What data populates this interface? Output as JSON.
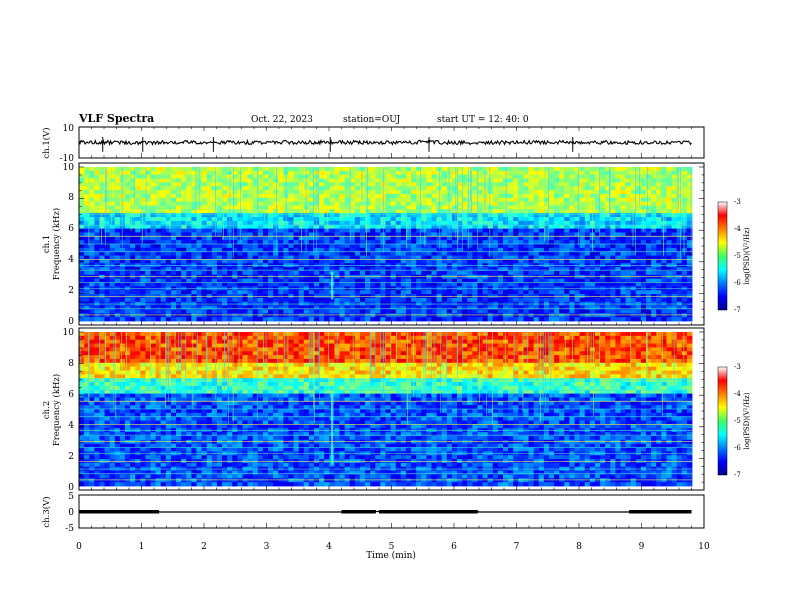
{
  "header": {
    "title": "VLF Spectra",
    "date": "Oct. 22, 2023",
    "station": "station=OUJ",
    "start": "start  UT =   12: 40: 0"
  },
  "chart_data": [
    {
      "type": "line",
      "name": "ch1-waveform",
      "ylabel": "ch.1(V)",
      "ylim": [
        -10,
        10
      ],
      "yticks": [
        "10",
        "-10"
      ],
      "xlim": [
        0,
        10
      ],
      "x": [
        0,
        0.5,
        1,
        1.5,
        2,
        2.5,
        3,
        3.5,
        4,
        4.5,
        5,
        5.5,
        6,
        6.5,
        7,
        7.5,
        8,
        8.5,
        9,
        9.5,
        9.8
      ],
      "y": [
        0.2,
        0,
        -0.3,
        0.2,
        0,
        0.1,
        -0.2,
        0.2,
        0,
        0.1,
        -0.1,
        0.2,
        0,
        -0.2,
        0.1,
        0,
        0.2,
        0,
        -0.1,
        0.1,
        0
      ]
    },
    {
      "type": "heatmap",
      "name": "ch1-spectrogram",
      "ylabel": "ch.1",
      "ylabel2": "Frequency (kHz)",
      "ylim": [
        0,
        10
      ],
      "yticks": [
        "0",
        "2",
        "4",
        "6",
        "8",
        "10"
      ],
      "xlim": [
        0,
        10
      ],
      "colorbar": {
        "label": "log(PSD)(V²/Hz)",
        "min": -7,
        "max": -3,
        "ticks": [
          "-3",
          "-4",
          "-5",
          "-6",
          "-7"
        ]
      }
    },
    {
      "type": "heatmap",
      "name": "ch2-spectrogram",
      "ylabel": "ch.2",
      "ylabel2": "Frequency (kHz)",
      "ylim": [
        0,
        10
      ],
      "yticks": [
        "0",
        "2",
        "4",
        "6",
        "8",
        "10"
      ],
      "xlim": [
        0,
        10
      ],
      "colorbar": {
        "label": "log(PSD)(V²/Hz)",
        "min": -7,
        "max": -3,
        "ticks": [
          "-3",
          "-4",
          "-5",
          "-6",
          "-7"
        ]
      }
    },
    {
      "type": "line",
      "name": "ch3-signal",
      "ylabel": "ch.3(V)",
      "ylim": [
        -5,
        5
      ],
      "yticks": [
        "5",
        "0",
        "-5"
      ],
      "xlim": [
        0,
        10
      ],
      "x": [
        0,
        1.28,
        1.29,
        4.2,
        4.21,
        6.38,
        6.39,
        8.8,
        8.81,
        9.8
      ],
      "y": [
        0,
        0,
        -0.15,
        -0.15,
        0,
        0,
        -0.15,
        -0.15,
        0,
        0
      ]
    }
  ],
  "xaxis": {
    "label": "Time (min)",
    "ticks": [
      "0",
      "1",
      "2",
      "3",
      "4",
      "5",
      "6",
      "7",
      "8",
      "9",
      "10"
    ]
  }
}
